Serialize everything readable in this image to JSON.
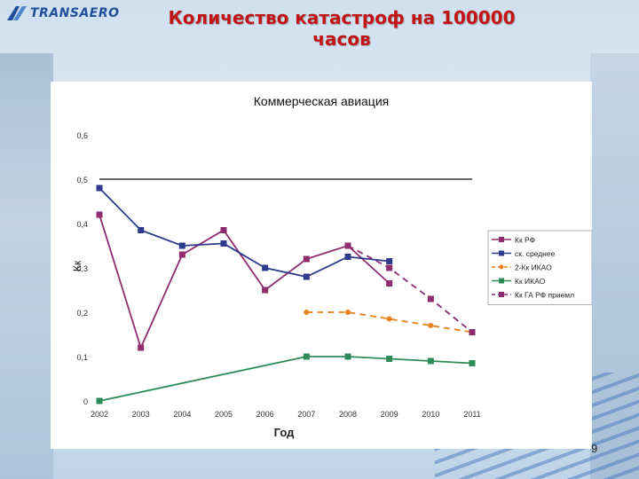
{
  "brand": {
    "logo_text": "TRANSAERO"
  },
  "slide": {
    "title_line1": "Количество катастроф на 100000",
    "title_line2": "часов",
    "page_number": "9"
  },
  "colors": {
    "title": "#c21414",
    "rf": "#8e2c6e",
    "avg": "#2e3a8c",
    "icao2": "#e8821e",
    "icao": "#2e8b57",
    "logo": "#1f4f9a"
  },
  "chart_data": {
    "type": "line",
    "title": "Коммерческая авиация",
    "xlabel": "Год",
    "ylabel": "Кк",
    "x": [
      "2002",
      "2003",
      "2004",
      "2005",
      "2006",
      "2007",
      "2008",
      "2009",
      "2010",
      "2011"
    ],
    "ylim": [
      0,
      0.6
    ],
    "yticks": [
      "0",
      "0,1",
      "0,2",
      "0,3",
      "0,4",
      "0,5",
      "0,6"
    ],
    "reference_line": 0.5,
    "grid": false,
    "legend_position": "right",
    "series": [
      {
        "name": "Кк РФ",
        "color": "#8e2c6e",
        "style": "solid",
        "marker": "square",
        "values": [
          0.42,
          0.12,
          0.33,
          0.385,
          0.25,
          0.32,
          0.35,
          0.265,
          null,
          null
        ]
      },
      {
        "name": "ск. среднее",
        "color": "#2e3a8c",
        "style": "solid",
        "marker": "square",
        "values": [
          0.48,
          0.385,
          0.35,
          0.355,
          0.3,
          0.28,
          0.325,
          0.315,
          null,
          null
        ]
      },
      {
        "name": "2-Кк ИКАО",
        "color": "#e8821e",
        "style": "dashed",
        "marker": "circle",
        "values": [
          null,
          null,
          null,
          null,
          null,
          0.2,
          0.2,
          0.185,
          0.17,
          0.155
        ]
      },
      {
        "name": "Кк ИКАО",
        "color": "#2e8b57",
        "style": "solid",
        "marker": "square",
        "values": [
          0,
          null,
          null,
          null,
          null,
          0.1,
          0.1,
          0.095,
          0.09,
          0.085
        ]
      },
      {
        "name": "Кк ГА РФ приемл",
        "color": "#8e2c6e",
        "style": "dashed",
        "marker": "square",
        "values": [
          null,
          null,
          null,
          null,
          null,
          null,
          0.35,
          0.3,
          0.23,
          0.155
        ]
      }
    ]
  }
}
